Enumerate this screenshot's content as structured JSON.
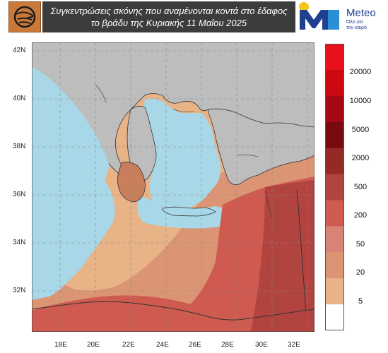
{
  "header": {
    "title_line1": "Συγκεντρώσεις σκόνης που αναμένονται κοντά στο έδαφος",
    "title_line2": "το βράδυ  της Κυριακής 11 Μαΐου  2025",
    "brand_name": "Meteo",
    "brand_slogan_line1": "Όλα για",
    "brand_slogan_line2": "τον καιρό",
    "brand_color": "#1f3f8f",
    "logo_left_color": "#c97a3a"
  },
  "map": {
    "lat_labels": [
      "42N",
      "40N",
      "38N",
      "36N",
      "34N",
      "32N"
    ],
    "lon_labels": [
      "18E",
      "20E",
      "22E",
      "24E",
      "26E",
      "28E",
      "30E",
      "32E"
    ],
    "colors": {
      "sea": "#a8d8e8",
      "land_no_data": "#bdbdbd",
      "border": "#333333"
    }
  },
  "legend": {
    "labels": [
      "20000",
      "10000",
      "5000",
      "2000",
      "500",
      "200",
      "50",
      "20",
      "5"
    ],
    "colors": [
      "#e8101a",
      "#cc0810",
      "#a50a14",
      "#7a0a10",
      "#932a26",
      "#b24440",
      "#cf5a50",
      "#d98276",
      "#dc9574",
      "#e8b387",
      "#ffffff"
    ]
  }
}
